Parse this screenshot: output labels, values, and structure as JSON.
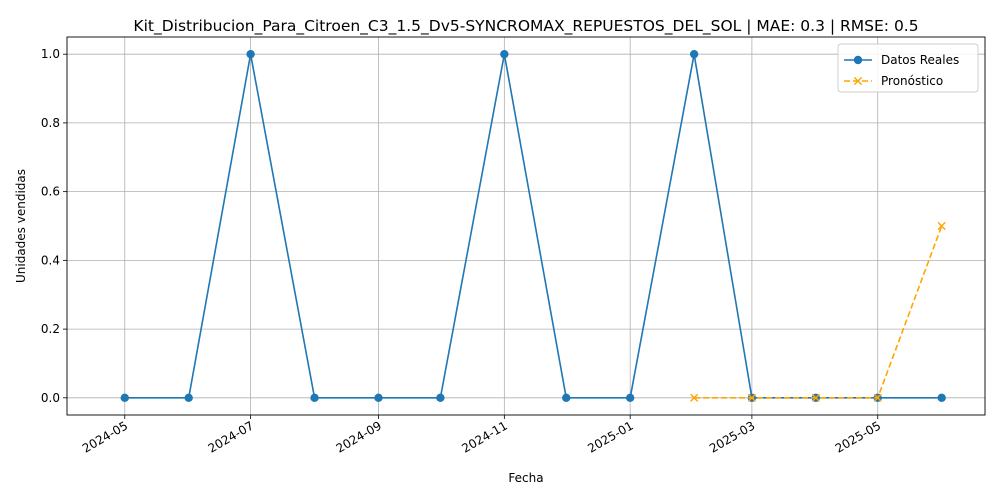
{
  "chart_data": {
    "type": "line",
    "title": "Kit_Distribucion_Para_Citroen_C3_1.5_Dv5-SYNCROMAX_REPUESTOS_DEL_SOL | MAE: 0.3 | RMSE: 0.5",
    "xlabel": "Fecha",
    "ylabel": "Unidades vendidas",
    "xlim": [
      "2024-04-03",
      "2025-06-22"
    ],
    "ylim": [
      -0.05,
      1.05
    ],
    "x_ticks": [
      "2024-05",
      "2024-07",
      "2024-09",
      "2024-11",
      "2025-01",
      "2025-03",
      "2025-05"
    ],
    "y_ticks": [
      "0.0",
      "0.2",
      "0.4",
      "0.6",
      "0.8",
      "1.0"
    ],
    "grid": true,
    "legend_position": "top-right",
    "series": [
      {
        "name": "Datos Reales",
        "color": "#1f77b4",
        "line_style": "solid",
        "marker": "circle",
        "x": [
          "2024-05-01",
          "2024-06-01",
          "2024-07-01",
          "2024-08-01",
          "2024-09-01",
          "2024-10-01",
          "2024-11-01",
          "2024-12-01",
          "2025-01-01",
          "2025-02-01",
          "2025-03-01",
          "2025-04-01",
          "2025-05-01",
          "2025-06-01"
        ],
        "values": [
          0,
          0,
          1,
          0,
          0,
          0,
          1,
          0,
          0,
          1,
          0,
          0,
          0,
          0
        ]
      },
      {
        "name": "Pronóstico",
        "color": "#ffa500",
        "line_style": "dashed",
        "marker": "x",
        "x": [
          "2025-02-01",
          "2025-03-01",
          "2025-04-01",
          "2025-05-01",
          "2025-06-01"
        ],
        "values": [
          0,
          0,
          0,
          0,
          0.5
        ]
      }
    ]
  }
}
